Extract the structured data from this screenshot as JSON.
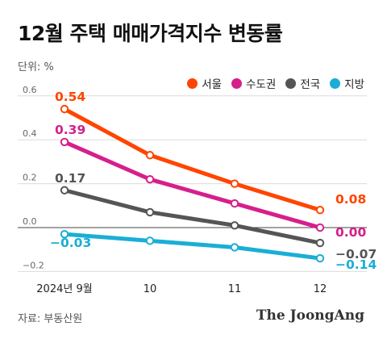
{
  "chart_data": {
    "type": "line",
    "title": "12월 주택 매매가격지수 변동률",
    "unit_label": "단위: %",
    "categories": [
      "2024년 9월",
      "10",
      "11",
      "12"
    ],
    "yticks": [
      "0.6",
      "0.4",
      "0.2",
      "0.0",
      "−0.2"
    ],
    "ylim": [
      -0.22,
      0.62
    ],
    "grid": true,
    "legend": "top-right",
    "series": [
      {
        "name": "서울",
        "color": "#ff4500",
        "values": [
          0.54,
          0.33,
          0.2,
          0.08
        ],
        "labels": [
          "0.54",
          "",
          "",
          "0.08"
        ]
      },
      {
        "name": "수도권",
        "color": "#d61f8c",
        "values": [
          0.39,
          0.22,
          0.11,
          0.0
        ],
        "labels": [
          "0.39",
          "",
          "",
          "0.00"
        ]
      },
      {
        "name": "전국",
        "color": "#555555",
        "values": [
          0.17,
          0.07,
          0.01,
          -0.07
        ],
        "labels": [
          "0.17",
          "",
          "",
          "−0.07"
        ]
      },
      {
        "name": "지방",
        "color": "#1aaed6",
        "values": [
          -0.03,
          -0.06,
          -0.09,
          -0.14
        ],
        "labels": [
          "−0.03",
          "",
          "",
          "−0.14"
        ]
      }
    ]
  },
  "footer": {
    "source": "자료: 부동산원",
    "brand": "The JoongAng"
  }
}
